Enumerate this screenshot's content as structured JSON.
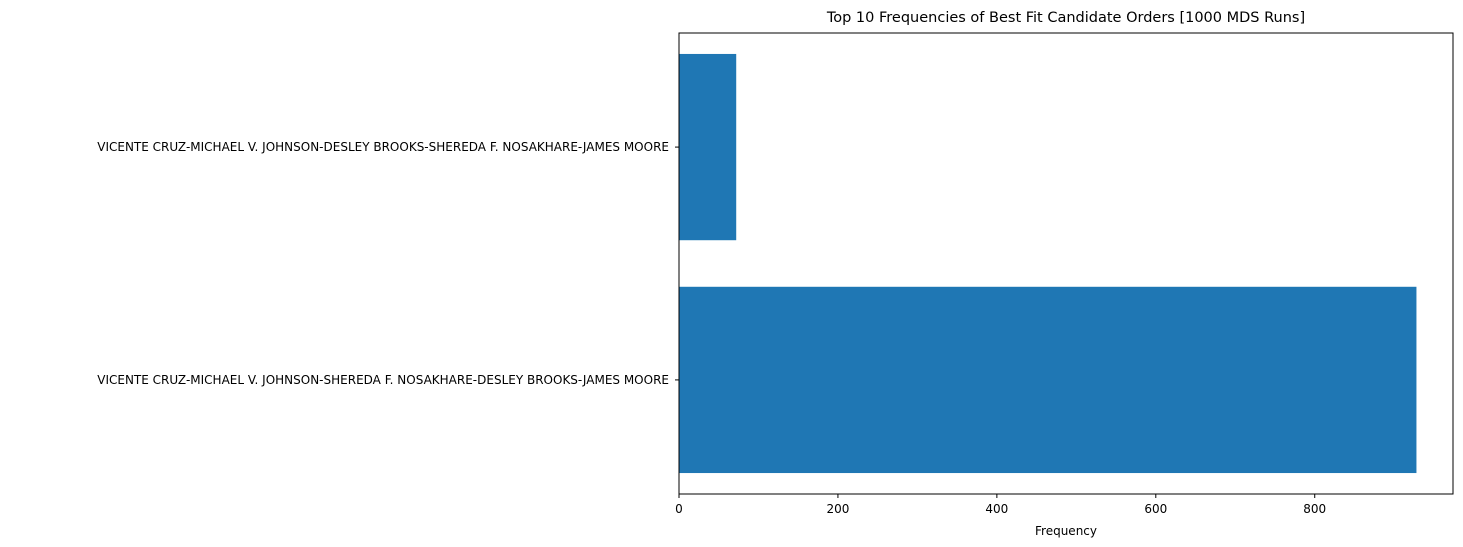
{
  "chart_data": {
    "type": "bar",
    "orientation": "horizontal",
    "title": "Top 10 Frequencies of Best Fit Candidate Orders [1000 MDS Runs]",
    "xlabel": "Frequency",
    "ylabel": "",
    "categories": [
      "VICENTE CRUZ-MICHAEL V. JOHNSON-SHEREDA F. NOSAKHARE-DESLEY BROOKS-JAMES MOORE",
      "VICENTE CRUZ-MICHAEL V. JOHNSON-DESLEY BROOKS-SHEREDA F. NOSAKHARE-JAMES MOORE"
    ],
    "values": [
      928,
      72
    ],
    "xlim": [
      0,
      974
    ],
    "xticks": [
      0,
      200,
      400,
      600,
      800
    ],
    "grid": false,
    "legend": "none",
    "bar_color": "#1f77b4"
  }
}
